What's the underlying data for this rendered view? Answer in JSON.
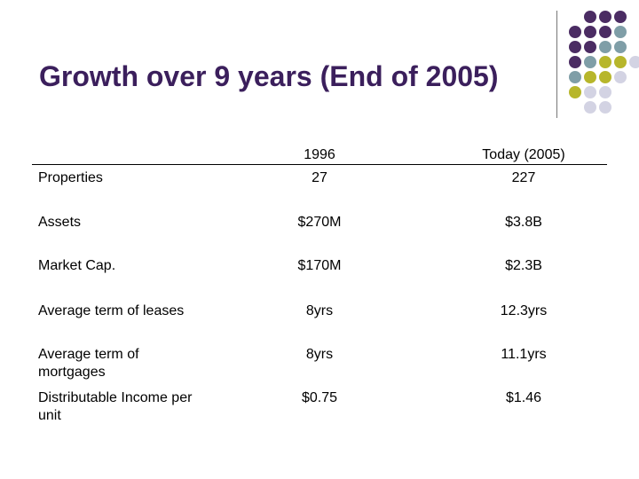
{
  "slide": {
    "title": "Growth over 9 years (End of 2005)"
  },
  "table": {
    "headers": [
      "1996",
      "Today (2005)"
    ],
    "rows": [
      {
        "label": "Properties",
        "v1996": "27",
        "v2005": "227"
      },
      {
        "label": "Assets",
        "v1996": "$270M",
        "v2005": "$3.8B"
      },
      {
        "label": "Market Cap.",
        "v1996": "$170M",
        "v2005": "$2.3B"
      },
      {
        "label": "Average term of leases",
        "v1996": "8yrs",
        "v2005": "12.3yrs"
      },
      {
        "label": "Average term of mortgages",
        "v1996": "8yrs",
        "v2005": "11.1yrs"
      },
      {
        "label": "Distributable Income per unit",
        "v1996": "$0.75",
        "v2005": "$1.46"
      }
    ]
  },
  "decoration": {
    "colors": {
      "purple": "#4b2c63",
      "teal": "#7f9ea7",
      "olive": "#b7b62b",
      "lavender": "#d3d3e3"
    }
  }
}
